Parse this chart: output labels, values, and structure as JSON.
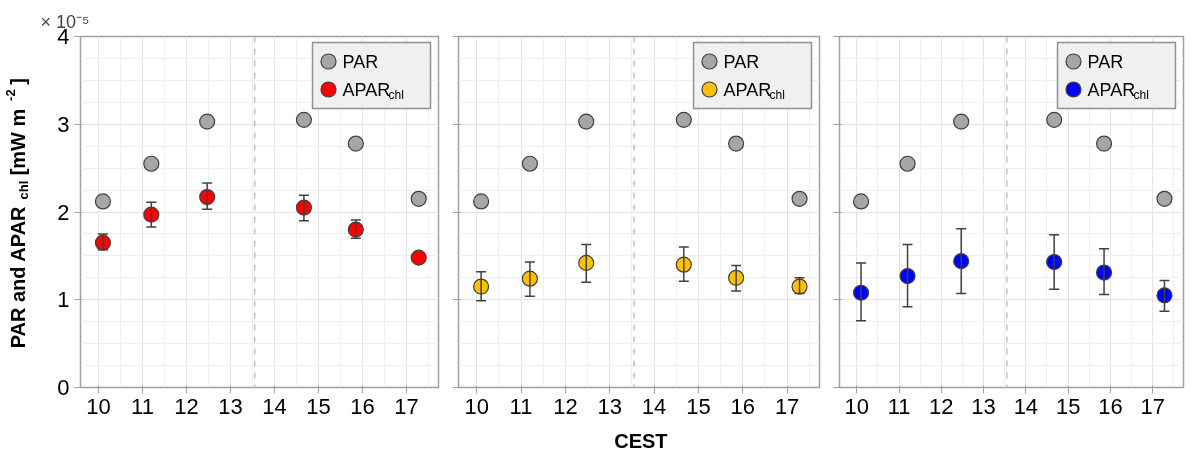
{
  "chart_data": [
    {
      "type": "scatter",
      "ylabel": "PAR and APAR$_{chl}$ [mW m$^{-2}$]",
      "annotations": [
        "× 10⁻⁵"
      ],
      "xlim": [
        9.59,
        17.73
      ],
      "xticks": [
        10,
        11,
        12,
        13,
        14,
        15,
        16,
        17
      ],
      "ylim": [
        0,
        4
      ],
      "yticks": [
        0,
        1,
        2,
        3,
        4
      ],
      "grid": true,
      "legend": "top right",
      "marker": "circle",
      "ref_lines": [
        {
          "axis": "x",
          "value": 13.55,
          "color": "#c0c0c0",
          "line_style": "dashed"
        }
      ],
      "series": [
        {
          "name": "PAR",
          "color": "#a6a6a6",
          "x": [
            10.1,
            11.2,
            12.47,
            14.67,
            15.85,
            17.28
          ],
          "values": [
            2.12,
            2.55,
            3.03,
            3.05,
            2.78,
            2.15
          ]
        },
        {
          "name": "APAR$_{chl}$",
          "color": "#ff0000",
          "x": [
            10.1,
            11.2,
            12.47,
            14.67,
            15.85,
            17.28
          ],
          "values": [
            1.65,
            1.97,
            2.17,
            2.05,
            1.8,
            1.48
          ],
          "errors": [
            [
              1.57,
              1.75
            ],
            [
              1.83,
              2.11
            ],
            [
              2.03,
              2.33
            ],
            [
              1.9,
              2.19
            ],
            [
              1.7,
              1.91
            ],
            null
          ]
        }
      ]
    },
    {
      "type": "scatter",
      "xlabel": "CEST",
      "xlim": [
        9.59,
        17.73
      ],
      "xticks": [
        10,
        11,
        12,
        13,
        14,
        15,
        16,
        17
      ],
      "ylim": [
        0,
        4
      ],
      "yticks": [
        0,
        1,
        2,
        3,
        4
      ],
      "grid": true,
      "legend": "top right",
      "marker": "circle",
      "tick_labels": "x",
      "ref_lines": [
        {
          "axis": "x",
          "value": 13.55,
          "color": "#c0c0c0",
          "line_style": "dashed"
        }
      ],
      "series": [
        {
          "name": "PAR",
          "color": "#a6a6a6",
          "x": [
            10.1,
            11.2,
            12.47,
            14.67,
            15.85,
            17.28
          ],
          "values": [
            2.12,
            2.55,
            3.03,
            3.05,
            2.78,
            2.15
          ]
        },
        {
          "name": "APAR$_{chl}$",
          "color": "#ffc000",
          "x": [
            10.1,
            11.2,
            12.47,
            14.67,
            15.85,
            17.28
          ],
          "values": [
            1.15,
            1.24,
            1.42,
            1.4,
            1.25,
            1.15
          ],
          "errors": [
            [
              0.99,
              1.32
            ],
            [
              1.04,
              1.43
            ],
            [
              1.2,
              1.63
            ],
            [
              1.21,
              1.6
            ],
            [
              1.1,
              1.39
            ],
            [
              1.07,
              1.25
            ]
          ]
        }
      ]
    },
    {
      "type": "scatter",
      "xlim": [
        9.59,
        17.73
      ],
      "xticks": [
        10,
        11,
        12,
        13,
        14,
        15,
        16,
        17
      ],
      "ylim": [
        0,
        4
      ],
      "yticks": [
        0,
        1,
        2,
        3,
        4
      ],
      "grid": true,
      "legend": "top right",
      "marker": "circle",
      "tick_labels": "x",
      "ref_lines": [
        {
          "axis": "x",
          "value": 13.55,
          "color": "#c0c0c0",
          "line_style": "dashed"
        }
      ],
      "series": [
        {
          "name": "PAR",
          "color": "#a6a6a6",
          "x": [
            10.1,
            11.2,
            12.47,
            14.67,
            15.85,
            17.28
          ],
          "values": [
            2.12,
            2.55,
            3.03,
            3.05,
            2.78,
            2.15
          ]
        },
        {
          "name": "APAR$_{chl}$",
          "color": "#0000ff",
          "x": [
            10.1,
            11.2,
            12.47,
            14.67,
            15.85,
            17.28
          ],
          "values": [
            1.08,
            1.27,
            1.44,
            1.43,
            1.31,
            1.05
          ],
          "errors": [
            [
              0.76,
              1.42
            ],
            [
              0.92,
              1.63
            ],
            [
              1.07,
              1.81
            ],
            [
              1.12,
              1.74
            ],
            [
              1.06,
              1.58
            ],
            [
              0.87,
              1.22
            ]
          ]
        }
      ]
    }
  ]
}
